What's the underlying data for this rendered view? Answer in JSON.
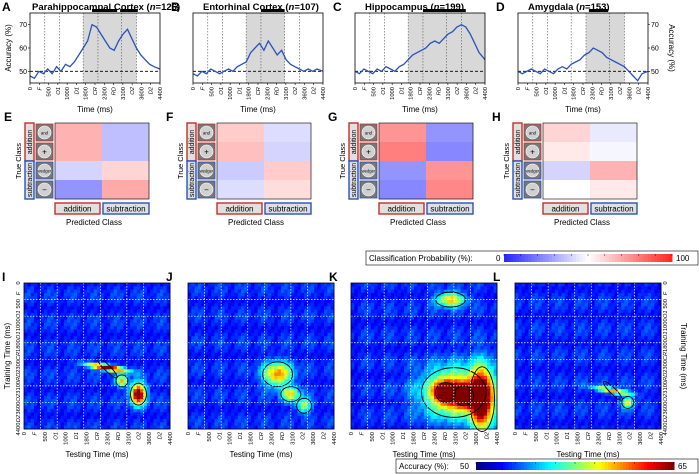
{
  "colors": {
    "line": "#2a52b8",
    "shade": "#d8d8d8",
    "addition_border": "#c0302a",
    "subtraction_border": "#2a52b8",
    "sig_bar": "#000000"
  },
  "panels_top": [
    {
      "letter": "A",
      "title_pre": "Parahippocampal Cortex (",
      "title_n": "n",
      "title_post": "=126)"
    },
    {
      "letter": "B",
      "title_pre": "Entorhinal Cortex (",
      "title_n": "n",
      "title_post": "=107)"
    },
    {
      "letter": "C",
      "title_pre": "Hippocampus (",
      "title_n": "n",
      "title_post": "=199)"
    },
    {
      "letter": "D",
      "title_pre": "Amygdala (",
      "title_n": "n",
      "title_post": "=153)"
    }
  ],
  "panels_mid": [
    {
      "letter": "E"
    },
    {
      "letter": "F"
    },
    {
      "letter": "G"
    },
    {
      "letter": "H"
    }
  ],
  "panels_bot": [
    {
      "letter": "I"
    },
    {
      "letter": "J"
    },
    {
      "letter": "K"
    },
    {
      "letter": "L"
    }
  ],
  "labels": {
    "accuracy_axis": "Accuracy (%)",
    "time_axis": "Time (ms)",
    "true_class": "True Class",
    "predicted_class": "Predicted Class",
    "addition": "addition",
    "subtraction": "subtraction",
    "stim_and": "and",
    "stim_plus": "+",
    "stim_wedger": "wedger",
    "stim_minus": "−",
    "training_time": "Training Time (ms)",
    "testing_time": "Testing Time (ms)",
    "class_prob": "Classification Probability (%):",
    "class_prob_min": "0",
    "class_prob_max": "100",
    "acc_cbar": "Accuracy (%):",
    "acc_cbar_min": "50",
    "acc_cbar_max": "65"
  },
  "chart_data": [
    {
      "type": "line",
      "panel": "A",
      "xlabel": "Time (ms)",
      "ylabel": "Accuracy (%)",
      "xlim": [
        0,
        4400
      ],
      "ylim": [
        45,
        75
      ],
      "yticks": [
        50,
        60,
        70
      ],
      "xticks": [
        "0",
        "F",
        "500",
        "O1",
        "1000",
        "D1",
        "1800",
        "CR",
        "2300",
        "RD",
        "3100",
        "O2",
        "3600",
        "D2",
        "4400"
      ],
      "chance": 50,
      "shaded": [
        1800,
        3600
      ],
      "sig_bars": [
        [
          2100,
          2950
        ],
        [
          3050,
          3650
        ]
      ],
      "x": [
        0,
        150,
        300,
        450,
        600,
        750,
        900,
        1050,
        1200,
        1350,
        1500,
        1650,
        1800,
        1950,
        2100,
        2250,
        2400,
        2550,
        2700,
        2850,
        3000,
        3150,
        3300,
        3450,
        3600,
        3750,
        3900,
        4050,
        4200,
        4400
      ],
      "y": [
        48,
        47,
        50,
        49,
        51,
        49,
        52,
        50,
        53,
        52,
        54,
        57,
        60,
        63,
        70,
        69,
        66,
        63,
        60,
        59,
        63,
        66,
        68,
        64,
        60,
        57,
        55,
        53,
        52,
        51
      ]
    },
    {
      "type": "line",
      "panel": "B",
      "xlabel": "Time (ms)",
      "ylabel": "",
      "xlim": [
        0,
        4400
      ],
      "ylim": [
        45,
        75
      ],
      "xticks": [
        "0",
        "F",
        "500",
        "O1",
        "1000",
        "D1",
        "1800",
        "CR",
        "2300",
        "RD",
        "3100",
        "O2",
        "3600",
        "D2",
        "4400"
      ],
      "chance": 50,
      "shaded": [
        1800,
        3100
      ],
      "sig_bars": [
        [
          2300,
          3100
        ]
      ],
      "x": [
        0,
        150,
        300,
        450,
        600,
        750,
        900,
        1050,
        1200,
        1350,
        1500,
        1650,
        1800,
        1950,
        2100,
        2250,
        2400,
        2550,
        2700,
        2850,
        3000,
        3150,
        3300,
        3450,
        3600,
        3750,
        3900,
        4050,
        4200,
        4400
      ],
      "y": [
        49,
        48,
        50,
        49,
        51,
        50,
        49,
        50,
        51,
        50,
        52,
        53,
        54,
        58,
        60,
        62,
        59,
        63,
        60,
        57,
        59,
        55,
        53,
        52,
        51,
        50,
        51,
        50,
        51,
        50
      ]
    },
    {
      "type": "line",
      "panel": "C",
      "xlabel": "Time (ms)",
      "ylabel": "",
      "xlim": [
        0,
        4400
      ],
      "ylim": [
        45,
        75
      ],
      "xticks": [
        "0",
        "F",
        "500",
        "O1",
        "1000",
        "D1",
        "1800",
        "CR",
        "2300",
        "RD",
        "3100",
        "O2",
        "3600",
        "D2",
        "4400"
      ],
      "chance": 50,
      "shaded": [
        1800,
        4400
      ],
      "sig_bars": [
        [
          2300,
          3750
        ]
      ],
      "x": [
        0,
        150,
        300,
        450,
        600,
        750,
        900,
        1050,
        1200,
        1350,
        1500,
        1650,
        1800,
        1950,
        2100,
        2250,
        2400,
        2550,
        2700,
        2850,
        3000,
        3150,
        3300,
        3450,
        3600,
        3750,
        3900,
        4050,
        4200,
        4400
      ],
      "y": [
        50,
        49,
        51,
        50,
        49,
        51,
        50,
        52,
        51,
        50,
        52,
        53,
        55,
        57,
        58,
        59,
        60,
        62,
        63,
        62,
        64,
        66,
        67,
        69,
        70,
        69,
        66,
        62,
        58,
        55
      ]
    },
    {
      "type": "line",
      "panel": "D",
      "xlabel": "Time (ms)",
      "ylabel": "Accuracy (%)",
      "xlim": [
        0,
        4400
      ],
      "ylim": [
        45,
        75
      ],
      "yticks": [
        50,
        60,
        70
      ],
      "xticks": [
        "0",
        "F",
        "500",
        "O1",
        "1000",
        "D1",
        "1800",
        "CR",
        "2300",
        "RD",
        "3100",
        "O2",
        "3600",
        "D2",
        "4400"
      ],
      "chance": 50,
      "shaded": [
        2300,
        3600
      ],
      "sig_bars": [
        [
          2400,
          3050
        ]
      ],
      "x": [
        0,
        150,
        300,
        450,
        600,
        750,
        900,
        1050,
        1200,
        1350,
        1500,
        1650,
        1800,
        1950,
        2100,
        2250,
        2400,
        2550,
        2700,
        2850,
        3000,
        3150,
        3300,
        3450,
        3600,
        3750,
        3900,
        4050,
        4200,
        4400
      ],
      "y": [
        50,
        49,
        50,
        51,
        50,
        49,
        51,
        50,
        49,
        51,
        52,
        51,
        53,
        54,
        55,
        57,
        58,
        60,
        59,
        58,
        56,
        55,
        54,
        53,
        52,
        50,
        48,
        46,
        49,
        50
      ]
    },
    {
      "type": "heatmap",
      "panel": "E",
      "xlabel": "Predicted Class",
      "ylabel": "True Class",
      "rows": [
        "and",
        "+",
        "wedger",
        "−"
      ],
      "cols": [
        "addition",
        "addition",
        "subtraction",
        "subtraction"
      ],
      "values": [
        [
          68,
          68,
          35,
          35
        ],
        [
          68,
          68,
          35,
          35
        ],
        [
          40,
          40,
          60,
          60
        ],
        [
          25,
          25,
          70,
          70
        ]
      ]
    },
    {
      "type": "heatmap",
      "panel": "F",
      "xlabel": "Predicted Class",
      "ylabel": "True Class",
      "rows": [
        "and",
        "+",
        "wedger",
        "−"
      ],
      "cols": [
        "addition",
        "addition",
        "subtraction",
        "subtraction"
      ],
      "values": [
        [
          62,
          62,
          42,
          42
        ],
        [
          65,
          65,
          40,
          40
        ],
        [
          38,
          38,
          62,
          62
        ],
        [
          42,
          42,
          58,
          58
        ]
      ]
    },
    {
      "type": "heatmap",
      "panel": "G",
      "xlabel": "Predicted Class",
      "ylabel": "True Class",
      "rows": [
        "and",
        "+",
        "wedger",
        "−"
      ],
      "cols": [
        "addition",
        "addition",
        "subtraction",
        "subtraction"
      ],
      "values": [
        [
          75,
          75,
          25,
          25
        ],
        [
          80,
          80,
          22,
          22
        ],
        [
          25,
          25,
          75,
          75
        ],
        [
          22,
          22,
          78,
          78
        ]
      ]
    },
    {
      "type": "heatmap",
      "panel": "H",
      "xlabel": "Predicted Class",
      "ylabel": "True Class",
      "rows": [
        "and",
        "+",
        "wedger",
        "−"
      ],
      "cols": [
        "addition",
        "addition",
        "subtraction",
        "subtraction"
      ],
      "values": [
        [
          60,
          60,
          45,
          45
        ],
        [
          55,
          55,
          48,
          48
        ],
        [
          40,
          40,
          68,
          68
        ],
        [
          50,
          50,
          55,
          55
        ]
      ]
    },
    {
      "type": "heatmap",
      "panel": "I",
      "xlabel": "Testing Time (ms)",
      "ylabel": "Training Time (ms)",
      "ticks": [
        "0",
        "F",
        "500",
        "O1",
        "1000",
        "D1",
        "1800",
        "CR",
        "2300",
        "RD",
        "3100",
        "O2",
        "3600",
        "D2",
        "4400"
      ],
      "blobs": [
        [
          2500,
          2550,
          280,
          60,
          14,
          0.75
        ],
        [
          3450,
          3350,
          160,
          220,
          14,
          0
        ],
        [
          2950,
          2950,
          120,
          120,
          8,
          0
        ]
      ]
    },
    {
      "type": "heatmap",
      "panel": "J",
      "xlabel": "Testing Time (ms)",
      "ylabel": "",
      "ticks": [
        "0",
        "F",
        "500",
        "O1",
        "1000",
        "D1",
        "1800",
        "CR",
        "2300",
        "RD",
        "3100",
        "O2",
        "3600",
        "D2",
        "4400"
      ],
      "blobs": [
        [
          2700,
          2750,
          300,
          250,
          9,
          0
        ],
        [
          3100,
          3350,
          200,
          150,
          7,
          0
        ],
        [
          3500,
          3700,
          150,
          150,
          6,
          0
        ]
      ]
    },
    {
      "type": "heatmap",
      "panel": "K",
      "xlabel": "Testing Time (ms)",
      "ylabel": "",
      "ticks": [
        "0",
        "F",
        "500",
        "O1",
        "1000",
        "D1",
        "1800",
        "CR",
        "2300",
        "RD",
        "3100",
        "O2",
        "3600",
        "D2",
        "4400"
      ],
      "blobs": [
        [
          3100,
          3300,
          650,
          500,
          10,
          0
        ],
        [
          3950,
          3500,
          250,
          650,
          14,
          0
        ],
        [
          2850,
          3300,
          200,
          200,
          12,
          0
        ],
        [
          3400,
          3400,
          200,
          200,
          13,
          0
        ],
        [
          3000,
          500,
          300,
          150,
          8,
          0
        ]
      ]
    },
    {
      "type": "heatmap",
      "panel": "L",
      "xlabel": "Testing Time (ms)",
      "ylabel": "Training Time (ms)",
      "ticks": [
        "0",
        "F",
        "500",
        "O1",
        "1000",
        "D1",
        "1800",
        "CR",
        "2300",
        "RD",
        "3100",
        "O2",
        "3600",
        "D2",
        "4400"
      ],
      "blobs": [
        [
          2950,
          3250,
          260,
          60,
          9,
          0.75
        ],
        [
          3400,
          3600,
          120,
          120,
          7,
          0
        ]
      ]
    }
  ]
}
